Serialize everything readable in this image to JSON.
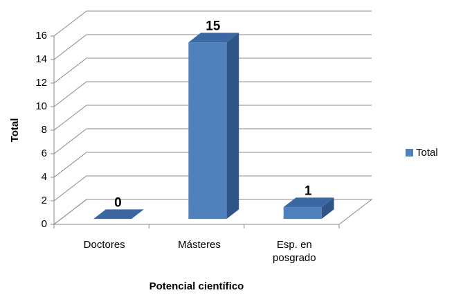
{
  "chart_data": {
    "type": "bar3d",
    "categories": [
      "Doctores",
      "Másteres",
      "Esp. en posgrado"
    ],
    "series": [
      {
        "name": "Total",
        "color": "#4f81bd",
        "values": [
          0,
          15,
          1
        ]
      }
    ],
    "x_label": "Potencial científico",
    "y_label": "Total",
    "ylim": [
      0,
      16
    ],
    "yticks": [
      0,
      2,
      4,
      6,
      8,
      10,
      12,
      14,
      16
    ],
    "grid": true,
    "legend": "right"
  }
}
